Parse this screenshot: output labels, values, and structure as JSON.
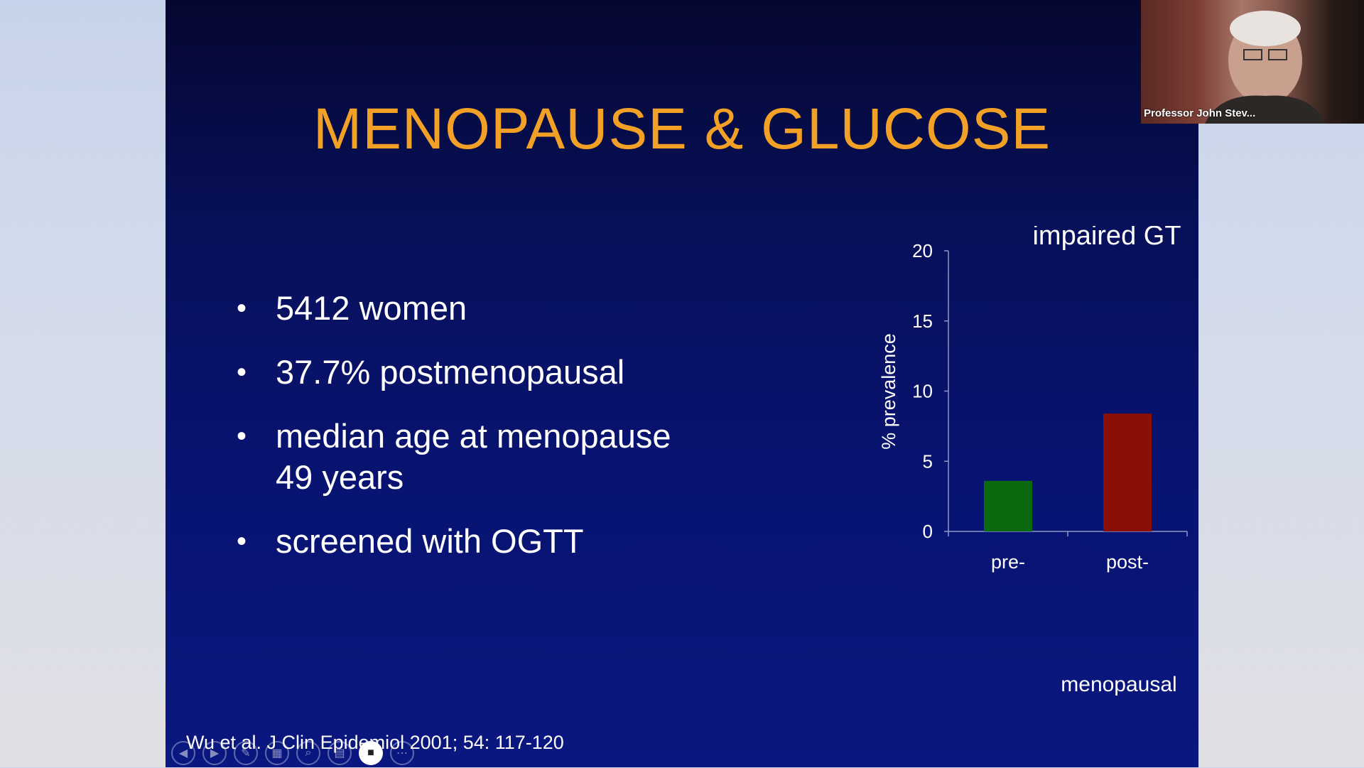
{
  "slide": {
    "title": "MENOPAUSE & GLUCOSE",
    "bullets": [
      {
        "text": "5412 women"
      },
      {
        "text": "37.7% postmenopausal"
      },
      {
        "text": "median age at menopause 49 years"
      },
      {
        "text": "screened with OGTT"
      }
    ],
    "citation": "Wu et al. J Clin Epidemiol 2001; 54: 117-120"
  },
  "chart_data": {
    "type": "bar",
    "title": "impaired GT",
    "categories": [
      "pre-",
      "post-"
    ],
    "values": [
      3.6,
      8.4
    ],
    "colors": [
      "#0b6a10",
      "#8a0f05"
    ],
    "xlabel": "menopausal",
    "ylabel": "% prevalence",
    "ylim": [
      0,
      20
    ],
    "yticks": [
      0,
      5,
      10,
      15,
      20
    ],
    "grid": false
  },
  "webcam": {
    "name": "Professor John Stev..."
  },
  "toolbar": {
    "buttons": [
      {
        "icon": "prev-icon",
        "glyph": "◀"
      },
      {
        "icon": "next-icon",
        "glyph": "▶"
      },
      {
        "icon": "pen-icon",
        "glyph": "✎"
      },
      {
        "icon": "slides-icon",
        "glyph": "▦"
      },
      {
        "icon": "zoom-icon",
        "glyph": "⌕"
      },
      {
        "icon": "subtitles-icon",
        "glyph": "▤"
      },
      {
        "icon": "camera-icon",
        "glyph": "■"
      },
      {
        "icon": "more-icon",
        "glyph": "⋯"
      }
    ]
  }
}
